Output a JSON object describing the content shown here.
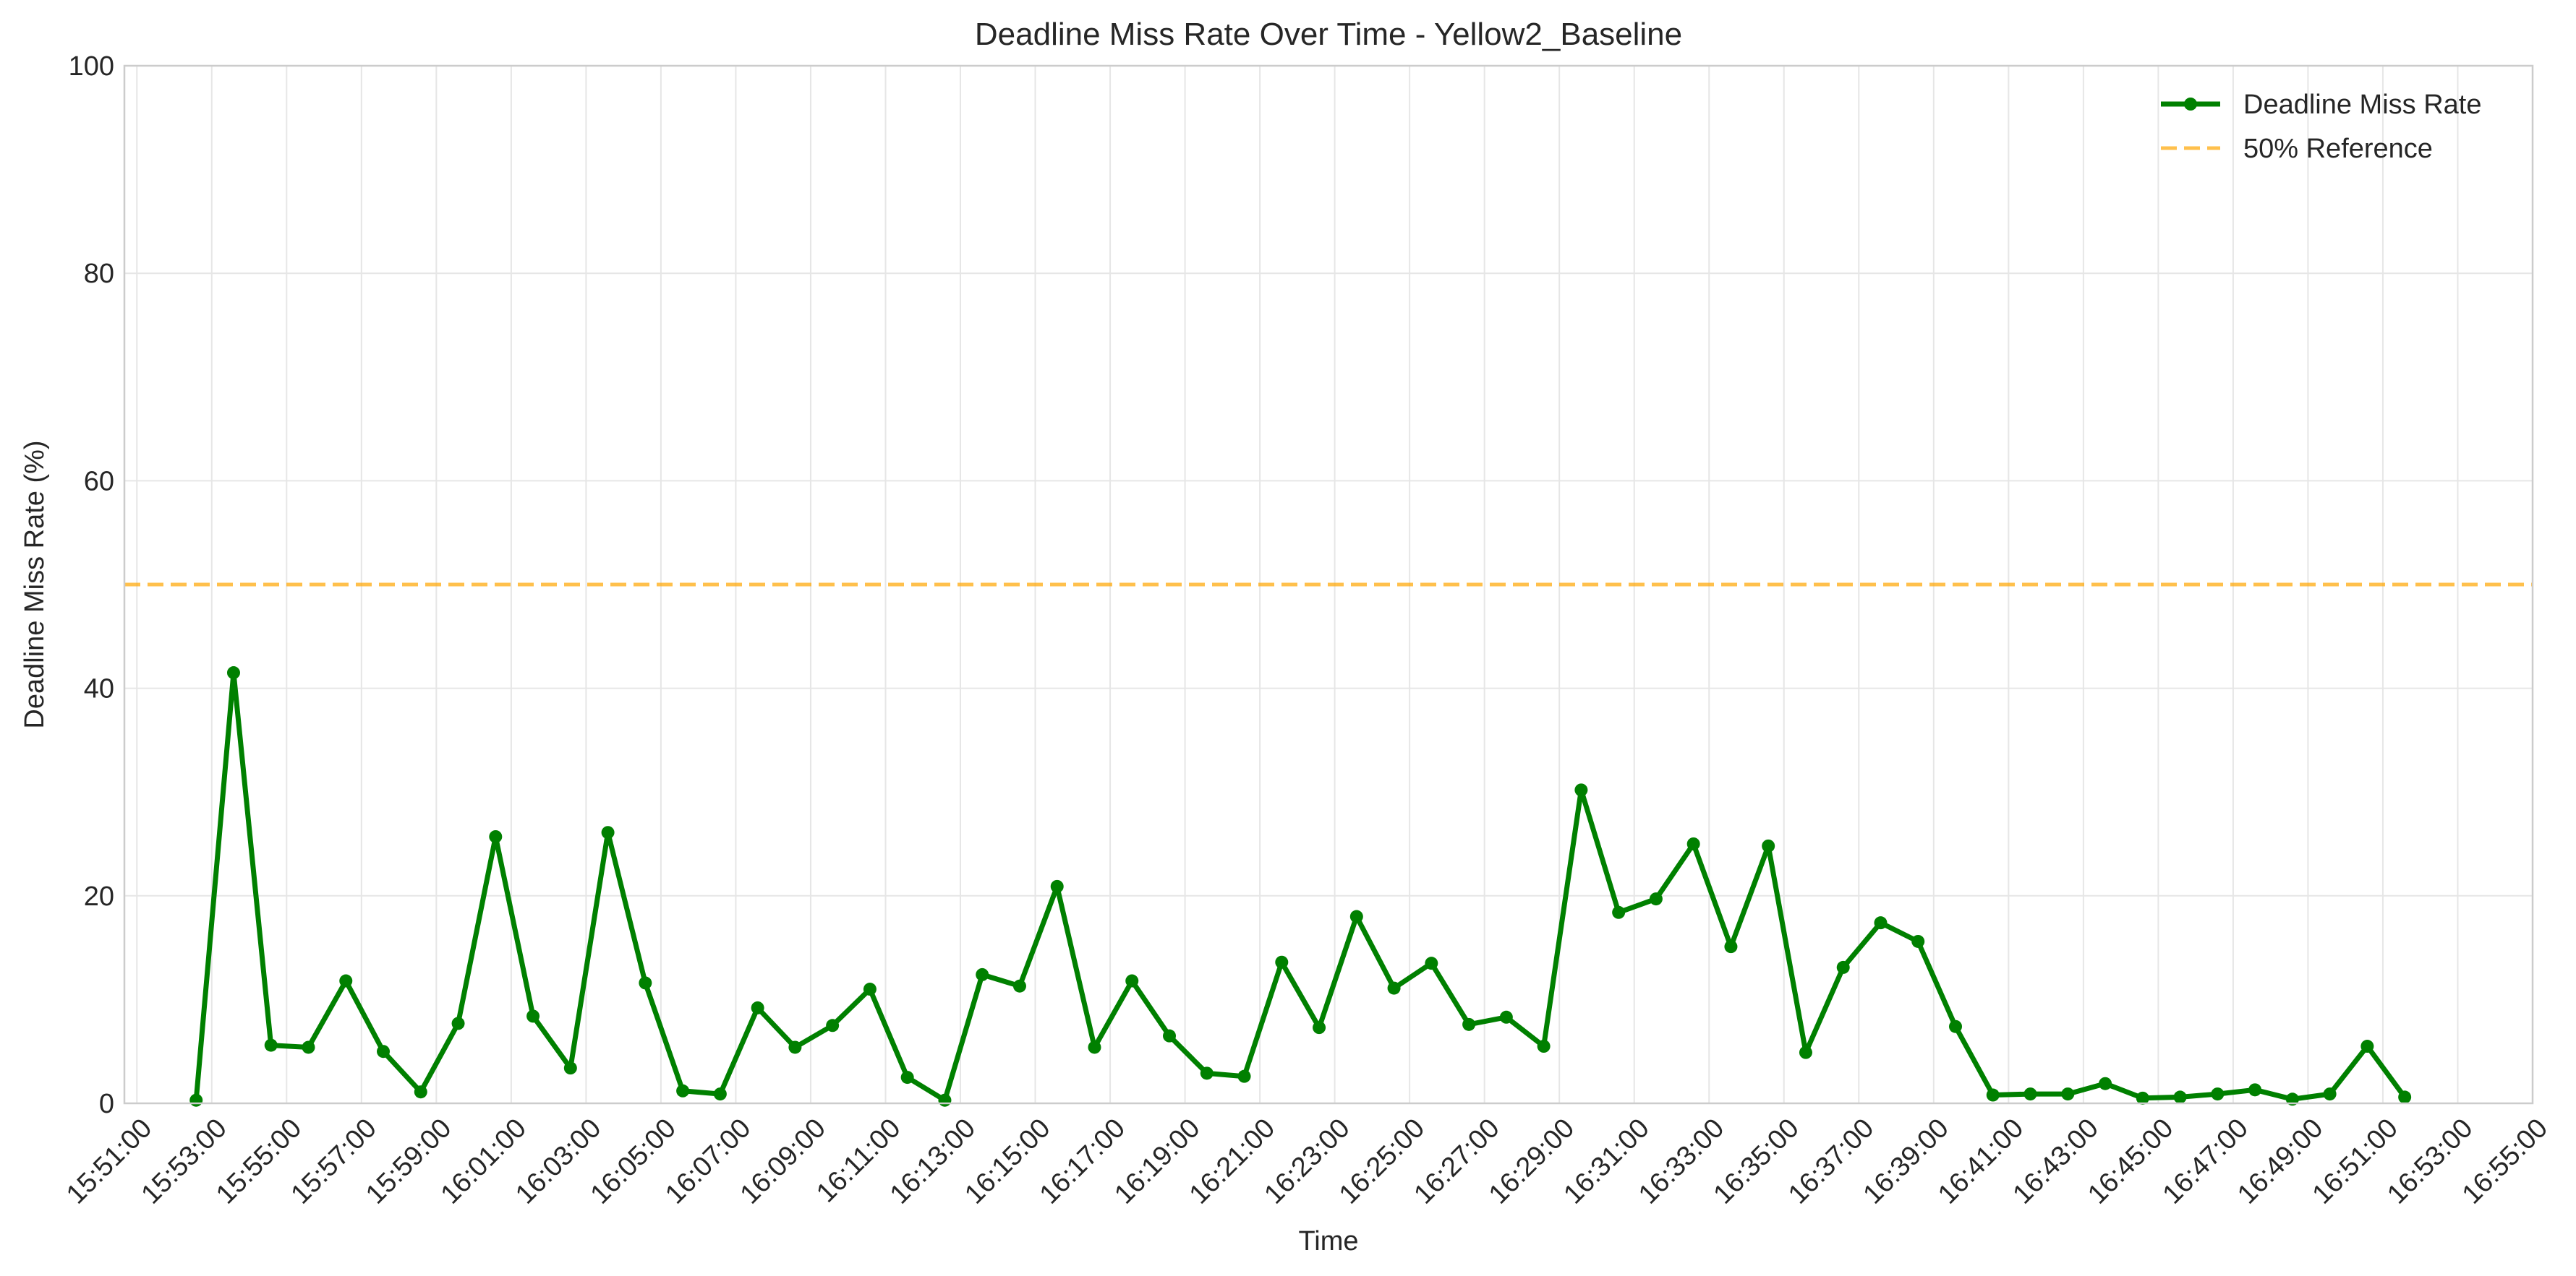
{
  "chart_data": {
    "type": "line",
    "title": "Deadline Miss Rate Over Time - Yellow2_Baseline",
    "xlabel": "Time",
    "ylabel": "Deadline Miss Rate (%)",
    "xlim": [
      "15:50:40",
      "16:55:00"
    ],
    "ylim": [
      0,
      100
    ],
    "x_ticks": [
      "15:51:00",
      "15:53:00",
      "15:55:00",
      "15:57:00",
      "15:59:00",
      "16:01:00",
      "16:03:00",
      "16:05:00",
      "16:07:00",
      "16:09:00",
      "16:11:00",
      "16:13:00",
      "16:15:00",
      "16:17:00",
      "16:19:00",
      "16:21:00",
      "16:23:00",
      "16:25:00",
      "16:27:00",
      "16:29:00",
      "16:31:00",
      "16:33:00",
      "16:35:00",
      "16:37:00",
      "16:39:00",
      "16:41:00",
      "16:43:00",
      "16:45:00",
      "16:47:00",
      "16:49:00",
      "16:51:00",
      "16:53:00",
      "16:55:00"
    ],
    "y_ticks": [
      0,
      20,
      40,
      60,
      80,
      100
    ],
    "grid": true,
    "legend_position": "top-right",
    "series": [
      {
        "name": "Deadline Miss Rate",
        "color": "#008000",
        "style": "solid-markers",
        "points": [
          {
            "x": "15:52:35",
            "y": 0.3
          },
          {
            "x": "15:53:35",
            "y": 41.5
          },
          {
            "x": "15:54:35",
            "y": 5.6
          },
          {
            "x": "15:55:35",
            "y": 5.4
          },
          {
            "x": "15:56:35",
            "y": 11.8
          },
          {
            "x": "15:57:35",
            "y": 5.0
          },
          {
            "x": "15:58:35",
            "y": 1.1
          },
          {
            "x": "15:59:35",
            "y": 7.7
          },
          {
            "x": "16:00:35",
            "y": 25.7
          },
          {
            "x": "16:01:35",
            "y": 8.4
          },
          {
            "x": "16:02:35",
            "y": 3.4
          },
          {
            "x": "16:03:35",
            "y": 26.1
          },
          {
            "x": "16:04:35",
            "y": 11.6
          },
          {
            "x": "16:05:35",
            "y": 1.2
          },
          {
            "x": "16:06:35",
            "y": 0.9
          },
          {
            "x": "16:07:35",
            "y": 9.2
          },
          {
            "x": "16:08:35",
            "y": 5.4
          },
          {
            "x": "16:09:35",
            "y": 7.5
          },
          {
            "x": "16:10:35",
            "y": 11.0
          },
          {
            "x": "16:11:35",
            "y": 2.5
          },
          {
            "x": "16:12:35",
            "y": 0.3
          },
          {
            "x": "16:13:35",
            "y": 12.4
          },
          {
            "x": "16:14:35",
            "y": 11.3
          },
          {
            "x": "16:15:35",
            "y": 20.9
          },
          {
            "x": "16:16:35",
            "y": 5.4
          },
          {
            "x": "16:17:35",
            "y": 11.8
          },
          {
            "x": "16:18:35",
            "y": 6.5
          },
          {
            "x": "16:19:35",
            "y": 2.9
          },
          {
            "x": "16:20:35",
            "y": 2.6
          },
          {
            "x": "16:21:35",
            "y": 13.6
          },
          {
            "x": "16:22:35",
            "y": 7.3
          },
          {
            "x": "16:23:35",
            "y": 18.0
          },
          {
            "x": "16:24:35",
            "y": 11.1
          },
          {
            "x": "16:25:35",
            "y": 13.5
          },
          {
            "x": "16:26:35",
            "y": 7.6
          },
          {
            "x": "16:27:35",
            "y": 8.3
          },
          {
            "x": "16:28:35",
            "y": 5.5
          },
          {
            "x": "16:29:35",
            "y": 30.2
          },
          {
            "x": "16:30:35",
            "y": 18.4
          },
          {
            "x": "16:31:35",
            "y": 19.7
          },
          {
            "x": "16:32:35",
            "y": 25.0
          },
          {
            "x": "16:33:35",
            "y": 15.1
          },
          {
            "x": "16:34:35",
            "y": 24.8
          },
          {
            "x": "16:35:35",
            "y": 4.9
          },
          {
            "x": "16:36:35",
            "y": 13.1
          },
          {
            "x": "16:37:35",
            "y": 17.4
          },
          {
            "x": "16:38:35",
            "y": 15.6
          },
          {
            "x": "16:39:35",
            "y": 7.4
          },
          {
            "x": "16:40:35",
            "y": 0.8
          },
          {
            "x": "16:41:35",
            "y": 0.9
          },
          {
            "x": "16:42:35",
            "y": 0.9
          },
          {
            "x": "16:43:35",
            "y": 1.9
          },
          {
            "x": "16:44:35",
            "y": 0.5
          },
          {
            "x": "16:45:35",
            "y": 0.6
          },
          {
            "x": "16:46:35",
            "y": 0.9
          },
          {
            "x": "16:47:35",
            "y": 1.3
          },
          {
            "x": "16:48:35",
            "y": 0.4
          },
          {
            "x": "16:49:35",
            "y": 0.9
          },
          {
            "x": "16:50:35",
            "y": 5.5
          },
          {
            "x": "16:51:35",
            "y": 0.6
          }
        ]
      },
      {
        "name": "50% Reference",
        "color": "#FFA500",
        "style": "dashed",
        "value": 50
      }
    ]
  }
}
